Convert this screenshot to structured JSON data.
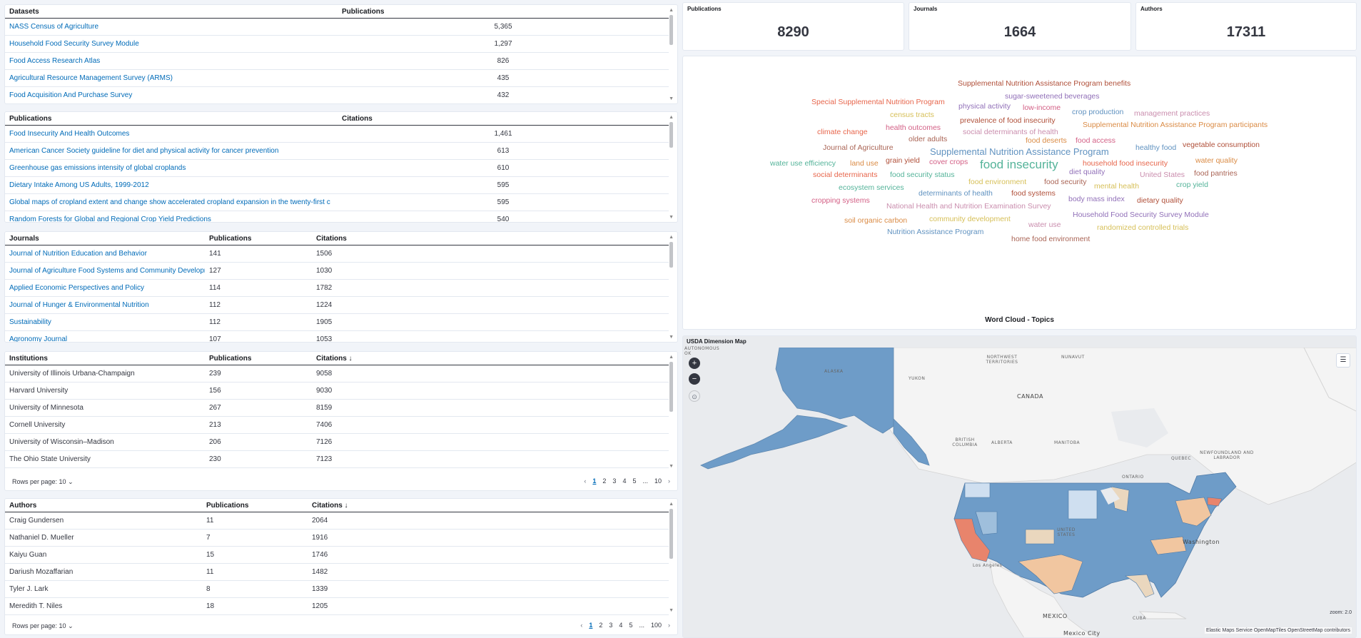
{
  "datasets_table": {
    "headers": [
      "Datasets",
      "Publications"
    ],
    "rows": [
      [
        "NASS Census of Agriculture",
        "5,365"
      ],
      [
        "Household Food Security Survey Module",
        "1,297"
      ],
      [
        "Food Access Research Atlas",
        "826"
      ],
      [
        "Agricultural Resource Management Survey (ARMS)",
        "435"
      ],
      [
        "Food Acquisition And Purchase Survey",
        "432"
      ]
    ]
  },
  "publications_table": {
    "headers": [
      "Publications",
      "Citations"
    ],
    "rows": [
      [
        "Food Insecurity And Health Outcomes",
        "1,461"
      ],
      [
        "American Cancer Society guideline for diet and physical activity for cancer prevention",
        "613"
      ],
      [
        "Greenhouse gas emissions intensity of global croplands",
        "610"
      ],
      [
        "Dietary Intake Among US Adults, 1999-2012",
        "595"
      ],
      [
        "Global maps of cropland extent and change show accelerated cropland expansion in the twenty-first c",
        "595"
      ],
      [
        "Random Forests for Global and Regional Crop Yield Predictions",
        "540"
      ]
    ]
  },
  "journals_table": {
    "headers": [
      "Journals",
      "Publications",
      "Citations"
    ],
    "rows": [
      [
        "Journal of Nutrition Education and Behavior",
        "141",
        "1506"
      ],
      [
        "Journal of Agriculture Food Systems and Community Development",
        "127",
        "1030"
      ],
      [
        "Applied Economic Perspectives and Policy",
        "114",
        "1782"
      ],
      [
        "Journal of Hunger & Environmental Nutrition",
        "112",
        "1224"
      ],
      [
        "Sustainability",
        "112",
        "1905"
      ],
      [
        "Agronomy Journal",
        "107",
        "1053"
      ]
    ]
  },
  "institutions_table": {
    "headers": [
      "Institutions",
      "Publications",
      "Citations ↓"
    ],
    "rows": [
      [
        "University of Illinois Urbana-Champaign",
        "239",
        "9058"
      ],
      [
        "Harvard University",
        "156",
        "9030"
      ],
      [
        "University of Minnesota",
        "267",
        "8159"
      ],
      [
        "Cornell University",
        "213",
        "7406"
      ],
      [
        "University of Wisconsin–Madison",
        "206",
        "7126"
      ],
      [
        "The Ohio State University",
        "230",
        "7123"
      ]
    ],
    "rows_per_page": "Rows per page: 10",
    "pages": [
      "1",
      "2",
      "3",
      "4",
      "5",
      "...",
      "10"
    ]
  },
  "authors_table": {
    "headers": [
      "Authors",
      "Publications",
      "Citations ↓"
    ],
    "rows": [
      [
        "Craig Gundersen",
        "11",
        "2064"
      ],
      [
        "Nathaniel D. Mueller",
        "7",
        "1916"
      ],
      [
        "Kaiyu Guan",
        "15",
        "1746"
      ],
      [
        "Dariush Mozaffarian",
        "11",
        "1482"
      ],
      [
        "Tyler J. Lark",
        "8",
        "1339"
      ],
      [
        "Meredith T. Niles",
        "18",
        "1205"
      ]
    ],
    "rows_per_page": "Rows per page: 10",
    "pages": [
      "1",
      "2",
      "3",
      "4",
      "5",
      "...",
      "100"
    ]
  },
  "metrics": [
    {
      "title": "Publications",
      "value": "8290"
    },
    {
      "title": "Journals",
      "value": "1664"
    },
    {
      "title": "Authors",
      "value": "17311"
    }
  ],
  "wordcloud": {
    "title": "Word Cloud - Topics",
    "words": [
      {
        "text": "Supplemental Nutrition Assistance Program benefits",
        "color": "#b0503a",
        "weight": 2
      },
      {
        "text": "sugar-sweetened beverages",
        "color": "#9170b8",
        "weight": 2
      },
      {
        "text": "Special Supplemental Nutrition Program",
        "color": "#e7664c",
        "weight": 2
      },
      {
        "text": "physical activity",
        "color": "#9170b8",
        "weight": 2
      },
      {
        "text": "low-income",
        "color": "#d36086",
        "weight": 2
      },
      {
        "text": "crop production",
        "color": "#6092c0",
        "weight": 2
      },
      {
        "text": "management practices",
        "color": "#ca8eae",
        "weight": 2
      },
      {
        "text": "census tracts",
        "color": "#d6bf57",
        "weight": 2
      },
      {
        "text": "prevalence of food insecurity",
        "color": "#b0503a",
        "weight": 2
      },
      {
        "text": "climate change",
        "color": "#e7664c",
        "weight": 2
      },
      {
        "text": "health outcomes",
        "color": "#d36086",
        "weight": 2
      },
      {
        "text": "social determinants of health",
        "color": "#ca8eae",
        "weight": 2
      },
      {
        "text": "Supplemental Nutrition Assistance Program participants",
        "color": "#da8b45",
        "weight": 2
      },
      {
        "text": "older adults",
        "color": "#aa6556",
        "weight": 2
      },
      {
        "text": "food deserts",
        "color": "#da8b45",
        "weight": 2
      },
      {
        "text": "food access",
        "color": "#d36086",
        "weight": 2
      },
      {
        "text": "Journal of Agriculture",
        "color": "#aa6556",
        "weight": 2
      },
      {
        "text": "Supplemental Nutrition Assistance Program",
        "color": "#6092c0",
        "weight": 3
      },
      {
        "text": "healthy food",
        "color": "#6092c0",
        "weight": 2
      },
      {
        "text": "vegetable consumption",
        "color": "#b0503a",
        "weight": 2
      },
      {
        "text": "water use efficiency",
        "color": "#54b399",
        "weight": 2
      },
      {
        "text": "land use",
        "color": "#da8b45",
        "weight": 2
      },
      {
        "text": "grain yield",
        "color": "#b0503a",
        "weight": 2
      },
      {
        "text": "cover crops",
        "color": "#d36086",
        "weight": 2
      },
      {
        "text": "food insecurity",
        "color": "#54b399",
        "weight": 4
      },
      {
        "text": "household food insecurity",
        "color": "#e7664c",
        "weight": 2
      },
      {
        "text": "water quality",
        "color": "#da8b45",
        "weight": 2
      },
      {
        "text": "diet quality",
        "color": "#9170b8",
        "weight": 2
      },
      {
        "text": "social determinants",
        "color": "#e7664c",
        "weight": 2
      },
      {
        "text": "food security status",
        "color": "#54b399",
        "weight": 2
      },
      {
        "text": "United States",
        "color": "#ca8eae",
        "weight": 2
      },
      {
        "text": "food pantries",
        "color": "#aa6556",
        "weight": 2
      },
      {
        "text": "food environment",
        "color": "#d6bf57",
        "weight": 2
      },
      {
        "text": "food security",
        "color": "#aa6556",
        "weight": 2
      },
      {
        "text": "ecosystem services",
        "color": "#54b399",
        "weight": 2
      },
      {
        "text": "mental health",
        "color": "#d6bf57",
        "weight": 2
      },
      {
        "text": "crop yield",
        "color": "#54b399",
        "weight": 2
      },
      {
        "text": "determinants of health",
        "color": "#6092c0",
        "weight": 2
      },
      {
        "text": "food systems",
        "color": "#b0503a",
        "weight": 2
      },
      {
        "text": "body mass index",
        "color": "#9170b8",
        "weight": 2
      },
      {
        "text": "dietary quality",
        "color": "#b0503a",
        "weight": 2
      },
      {
        "text": "cropping systems",
        "color": "#d36086",
        "weight": 2
      },
      {
        "text": "National Health and Nutrition Examination Survey",
        "color": "#ca8eae",
        "weight": 2
      },
      {
        "text": "Household Food Security Survey Module",
        "color": "#9170b8",
        "weight": 2
      },
      {
        "text": "soil organic carbon",
        "color": "#da8b45",
        "weight": 2
      },
      {
        "text": "community development",
        "color": "#d6bf57",
        "weight": 2
      },
      {
        "text": "water use",
        "color": "#ca8eae",
        "weight": 2
      },
      {
        "text": "randomized controlled trials",
        "color": "#d6bf57",
        "weight": 2
      },
      {
        "text": "Nutrition Assistance Program",
        "color": "#6092c0",
        "weight": 2
      },
      {
        "text": "home food environment",
        "color": "#aa6556",
        "weight": 2
      }
    ]
  },
  "map": {
    "title": "USDA Dimension Map",
    "zoom_label": "zoom: 2.0",
    "attribution": "Elastic Maps Service  OpenMapTiles  OpenStreetMap contributors",
    "place_labels": [
      "ALASKA",
      "YUKON",
      "NORTHWEST TERRITORIES",
      "NUNAVUT",
      "CANADA",
      "BRITISH COLUMBIA",
      "ALBERTA",
      "MANITOBA",
      "ONTARIO",
      "QUEBEC",
      "NEWFOUNDLAND AND LABRADOR",
      "UNITED STATES",
      "MEXICO",
      "CUBA",
      "Washington",
      "Los Angeles",
      "Mexico City",
      "AUTONOMOUS OK"
    ],
    "colors": {
      "low": "#cfdff0",
      "mid": "#6e9cc8",
      "high": "#e8846c",
      "pale": "#ead7be",
      "ocean": "#e9ebee",
      "land": "#f5f5f5"
    }
  }
}
